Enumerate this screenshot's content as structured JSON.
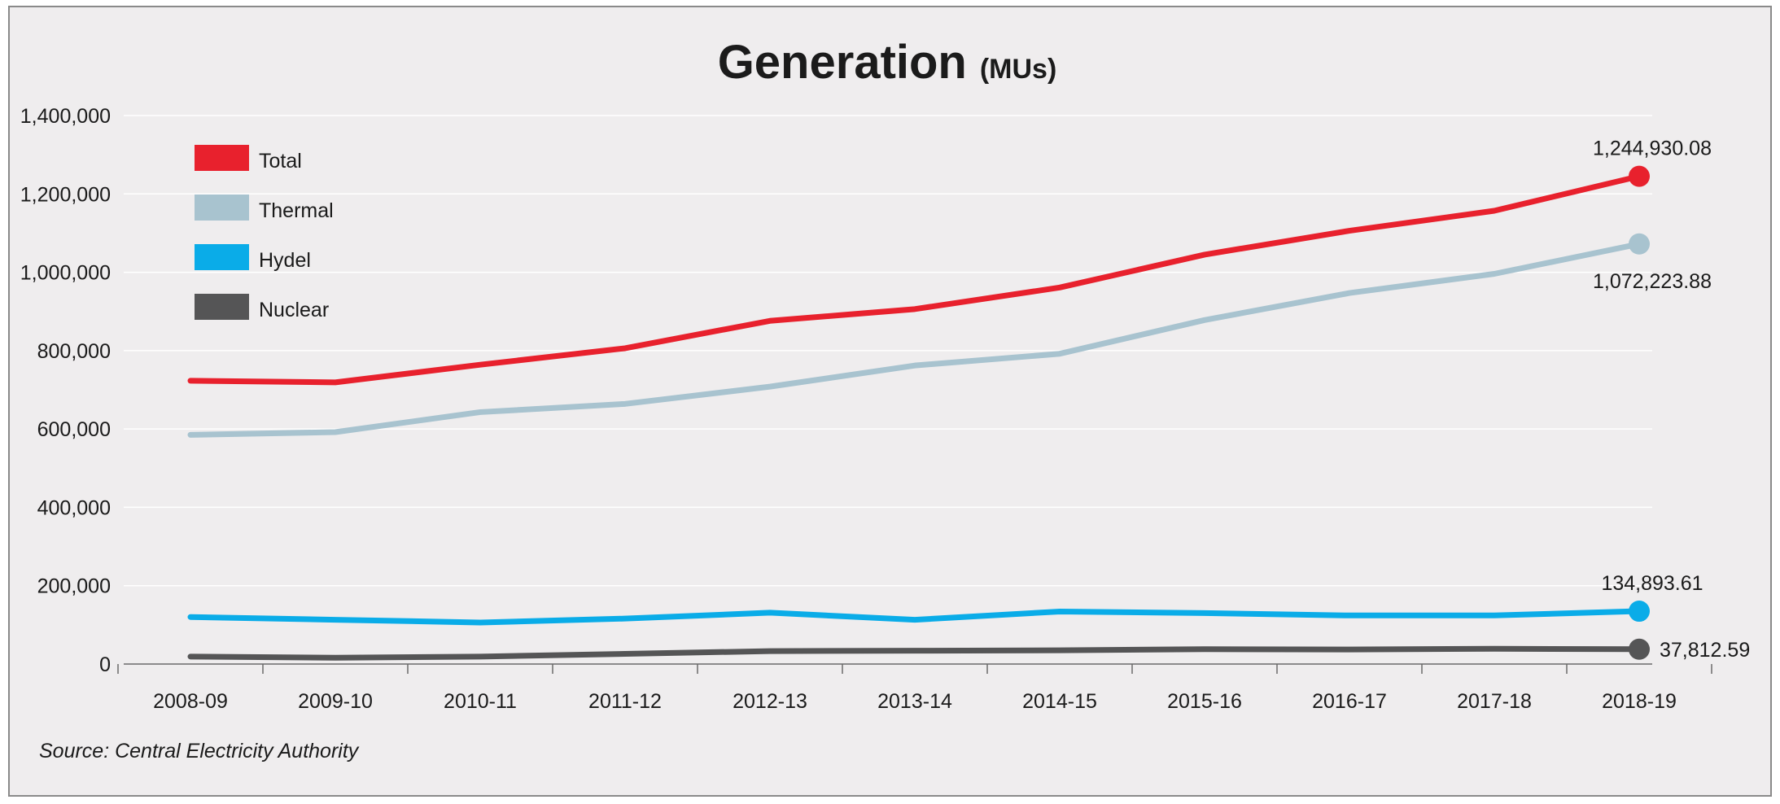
{
  "chart_data": {
    "type": "line",
    "title": "Generation",
    "title_unit": "(MUs)",
    "source": "Source: Central Electricity Authority",
    "x": [
      "2008-09",
      "2009-10",
      "2010-11",
      "2011-12",
      "2012-13",
      "2013-14",
      "2014-15",
      "2015-16",
      "2016-17",
      "2017-18",
      "2018-19"
    ],
    "ylim": [
      0,
      1400000
    ],
    "yticks": [
      0,
      200000,
      400000,
      600000,
      800000,
      1000000,
      1200000,
      1400000
    ],
    "ytick_labels": [
      "0",
      "200,000",
      "400,000",
      "600,000",
      "800,000",
      "1,000,000",
      "1,200,000",
      "1,400,000"
    ],
    "grid": "horizontal",
    "legend_position": "top-left",
    "series": [
      {
        "name": "Total",
        "color": "#e8212d",
        "values": [
          723000,
          719000,
          764000,
          806000,
          876000,
          906000,
          961000,
          1045000,
          1106000,
          1157000,
          1244930.08
        ],
        "end_label": "1,244,930.08",
        "end_label_pos": "above"
      },
      {
        "name": "Thermal",
        "color": "#a8c3cf",
        "values": [
          585000,
          592000,
          643000,
          664000,
          708000,
          762000,
          792000,
          878000,
          947000,
          996000,
          1072223.88
        ],
        "end_label": "1,072,223.88",
        "end_label_pos": "below"
      },
      {
        "name": "Hydel",
        "color": "#0aace8",
        "values": [
          120000,
          113000,
          106000,
          116000,
          131000,
          113000,
          134000,
          130000,
          124000,
          124000,
          134893.61
        ],
        "end_label": "134,893.61",
        "end_label_pos": "above"
      },
      {
        "name": "Nuclear",
        "color": "#555556",
        "values": [
          19000,
          16000,
          19000,
          26000,
          33000,
          34000,
          35000,
          38000,
          37000,
          39000,
          37812.59
        ],
        "end_label": "37,812.59",
        "end_label_pos": "right"
      }
    ]
  }
}
